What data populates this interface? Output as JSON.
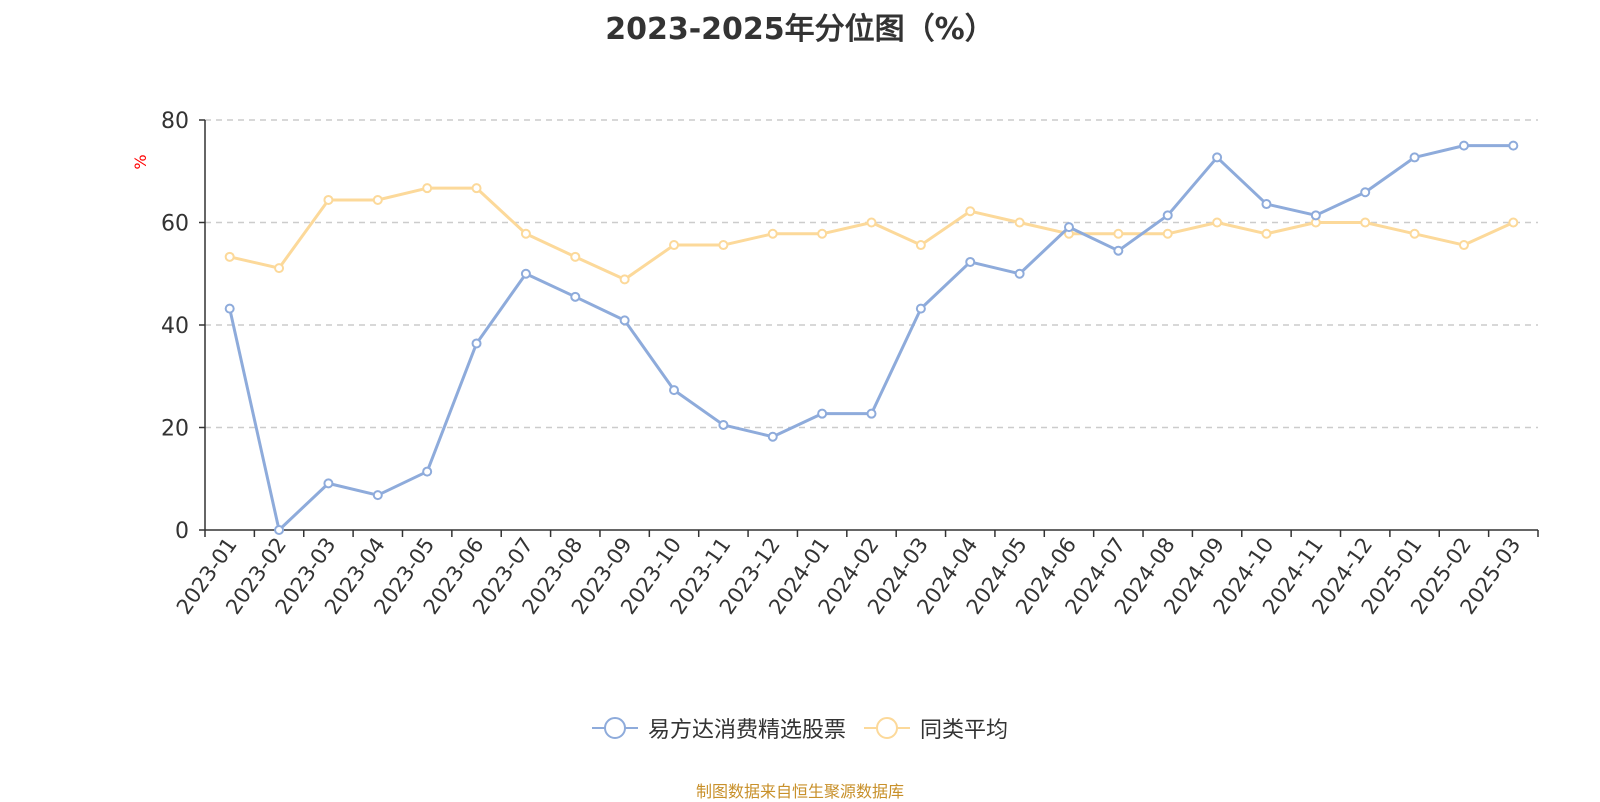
{
  "title": "2023-2025年分位图（%）",
  "source_note": "制图数据来自恒生聚源数据库",
  "chart_data": {
    "type": "line",
    "title": "2023-2025年分位图（%）",
    "ylabel": "%",
    "xlabel": "",
    "ylim": [
      0,
      80
    ],
    "yticks": [
      0,
      20,
      40,
      60,
      80
    ],
    "grid": true,
    "legend_position": "bottom",
    "categories": [
      "2023-01",
      "2023-02",
      "2023-03",
      "2023-04",
      "2023-05",
      "2023-06",
      "2023-07",
      "2023-08",
      "2023-09",
      "2023-10",
      "2023-11",
      "2023-12",
      "2024-01",
      "2024-02",
      "2024-03",
      "2024-04",
      "2024-05",
      "2024-06",
      "2024-07",
      "2024-08",
      "2024-09",
      "2024-10",
      "2024-11",
      "2024-12",
      "2025-01",
      "2025-02",
      "2025-03"
    ],
    "series": [
      {
        "name": "易方达消费精选股票",
        "color": "#8eabdb",
        "values": [
          43.2,
          0,
          9.1,
          6.8,
          11.4,
          36.4,
          50.0,
          45.5,
          40.9,
          27.3,
          20.5,
          18.2,
          22.7,
          22.7,
          43.2,
          52.3,
          50.0,
          59.1,
          54.5,
          61.4,
          72.7,
          63.6,
          61.4,
          65.9,
          72.7,
          75.0,
          75.0
        ]
      },
      {
        "name": "同类平均",
        "color": "#fcd99a",
        "values": [
          53.3,
          51.1,
          64.4,
          64.4,
          66.7,
          66.7,
          57.8,
          53.3,
          48.9,
          55.6,
          55.6,
          57.8,
          57.8,
          60.0,
          55.6,
          62.2,
          60.0,
          57.8,
          57.8,
          57.8,
          60.0,
          57.8,
          60.0,
          60.0,
          57.8,
          55.6,
          60.0
        ]
      }
    ]
  }
}
